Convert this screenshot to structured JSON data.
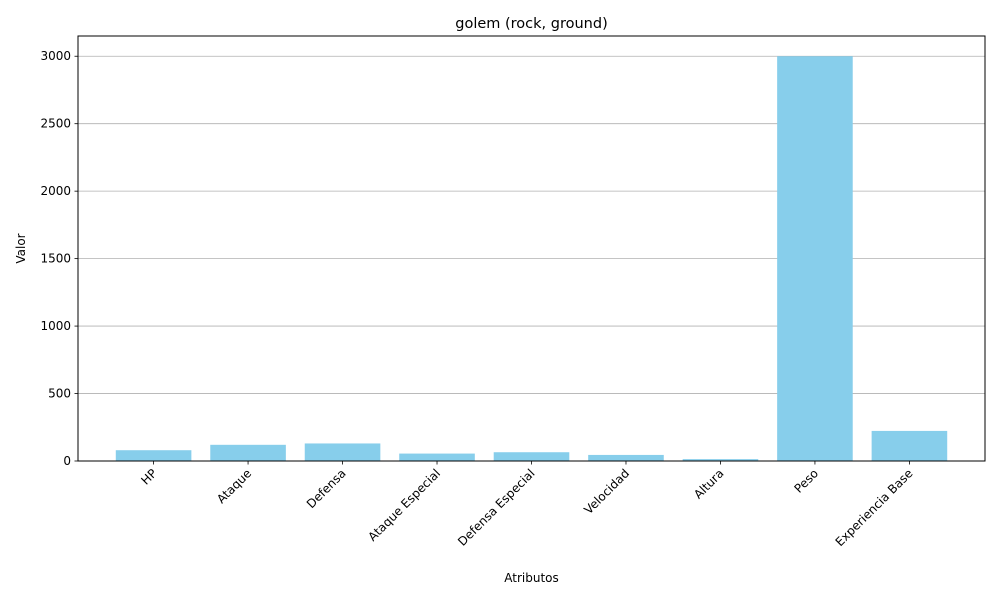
{
  "chart_data": {
    "type": "bar",
    "title": "golem (rock, ground)",
    "xlabel": "Atributos",
    "ylabel": "Valor",
    "categories": [
      "HP",
      "Ataque",
      "Defensa",
      "Ataque Especial",
      "Defensa Especial",
      "Velocidad",
      "Altura",
      "Peso",
      "Experiencia Base"
    ],
    "values": [
      80,
      120,
      130,
      55,
      65,
      45,
      14,
      3000,
      223
    ],
    "ylim": [
      0,
      3150
    ],
    "yticks": [
      0,
      500,
      1000,
      1500,
      2000,
      2500,
      3000
    ],
    "grid": "y",
    "bar_color": "#87ceeb",
    "legend": "none"
  }
}
